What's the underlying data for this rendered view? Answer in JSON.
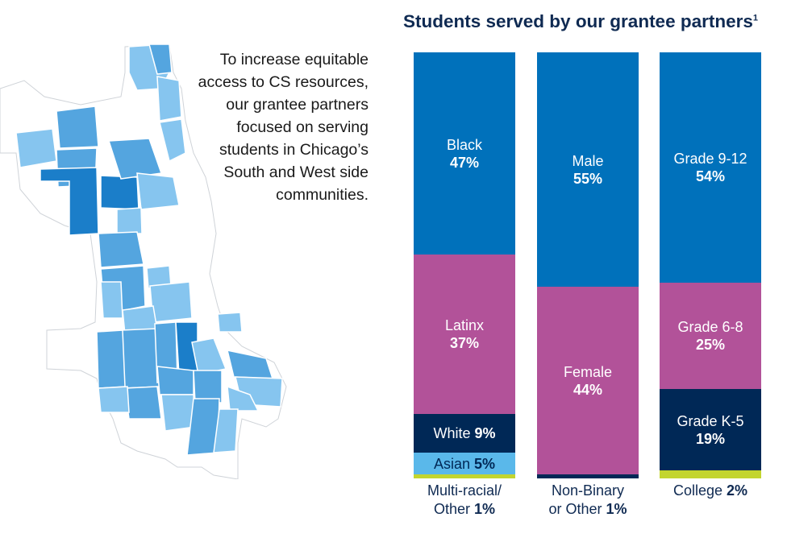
{
  "intro": {
    "lines": [
      "To increase equitable",
      "access to CS resources,",
      "our grantee partners",
      "focused on serving",
      "students in Chicago’s",
      "South and West side",
      "communities."
    ]
  },
  "colors": {
    "title": "#0f2a52",
    "blue": "#0071bb",
    "magenta": "#b25299",
    "navy": "#002856",
    "light_blue": "#5ab8ea",
    "lime": "#c3d52f",
    "map_base": "#ffffff",
    "map_border": "#cfd3d8",
    "map_light": "#86c5ef",
    "map_mid": "#54a5df",
    "map_dark": "#1b7ec9"
  },
  "chart_data": {
    "type": "stacked-bar",
    "title": "Students served by our grantee partners",
    "title_footnote": "1",
    "unit": "%",
    "columns": [
      {
        "segments": [
          {
            "label": "Black",
            "value": 47,
            "color": "#0071bb",
            "text_color": "#ffffff"
          },
          {
            "label": "Latinx",
            "value": 37,
            "color": "#b25299",
            "text_color": "#ffffff"
          },
          {
            "label": "White",
            "value": 9,
            "color": "#002856",
            "text_color": "#ffffff",
            "inline": true
          },
          {
            "label": "Asian",
            "value": 5,
            "color": "#5ab8ea",
            "text_color": "#002856",
            "inline": true
          },
          {
            "label": "Multi-racial/ Other",
            "value": 1,
            "color": "#c3d52f",
            "hidden_label": true
          }
        ],
        "footer_lines": [
          "Multi-racial/",
          "Other"
        ],
        "footer_value": "1%"
      },
      {
        "segments": [
          {
            "label": "Male",
            "value": 55,
            "color": "#0071bb",
            "text_color": "#ffffff"
          },
          {
            "label": "Female",
            "value": 44,
            "color": "#b25299",
            "text_color": "#ffffff"
          },
          {
            "label": "Non-Binary or Other",
            "value": 1,
            "color": "#002856",
            "hidden_label": true
          }
        ],
        "footer_lines": [
          "Non-Binary",
          "or Other"
        ],
        "footer_value": "1%"
      },
      {
        "segments": [
          {
            "label": "Grade 9-12",
            "value": 54,
            "color": "#0071bb",
            "text_color": "#ffffff"
          },
          {
            "label": "Grade 6-8",
            "value": 25,
            "color": "#b25299",
            "text_color": "#ffffff"
          },
          {
            "label": "Grade K-5",
            "value": 19,
            "color": "#002856",
            "text_color": "#ffffff"
          },
          {
            "label": "College",
            "value": 2,
            "color": "#c3d52f",
            "hidden_label": true
          }
        ],
        "footer_lines": [
          "College"
        ],
        "footer_value": "2%"
      }
    ]
  }
}
